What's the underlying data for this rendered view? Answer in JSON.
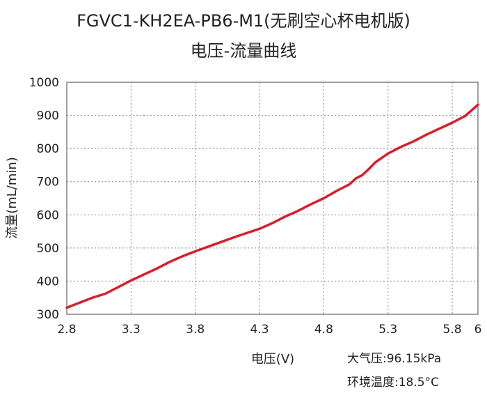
{
  "chart_data": {
    "type": "line",
    "title_line1": "FGVC1-KH2EA-PB6-M1(无刷空心杯电机版)",
    "title_line2": "电压-流量曲线",
    "xlabel": "电压(V)",
    "ylabel": "流量(mL/min)",
    "xlim": [
      2.8,
      6
    ],
    "ylim": [
      300,
      1000
    ],
    "xticks": [
      2.8,
      3.3,
      3.8,
      4.3,
      4.8,
      5.3,
      5.8,
      6
    ],
    "xtick_labels": [
      "2.8",
      "3.3",
      "3.8",
      "4.3",
      "4.8",
      "5.3",
      "5.8",
      "6"
    ],
    "yticks": [
      300,
      400,
      500,
      600,
      700,
      800,
      900,
      1000
    ],
    "ytick_labels": [
      "300",
      "400",
      "500",
      "600",
      "700",
      "800",
      "900",
      "1000"
    ],
    "grid": true,
    "line_color": "#d81e2a",
    "series": [
      {
        "x": [
          2.8,
          3.0,
          3.1,
          3.2,
          3.3,
          3.4,
          3.5,
          3.6,
          3.7,
          3.8,
          4.0,
          4.1,
          4.2,
          4.3,
          4.4,
          4.5,
          4.6,
          4.7,
          4.8,
          4.9,
          5.0,
          5.05,
          5.1,
          5.15,
          5.2,
          5.3,
          5.4,
          5.5,
          5.6,
          5.7,
          5.8,
          5.9,
          6.0
        ],
        "y": [
          320,
          350,
          362,
          382,
          402,
          420,
          438,
          458,
          475,
          490,
          518,
          532,
          545,
          558,
          575,
          595,
          612,
          632,
          650,
          672,
          692,
          710,
          720,
          738,
          758,
          785,
          805,
          822,
          842,
          860,
          878,
          898,
          932
        ]
      }
    ],
    "annotations": {
      "pressure": "大气压:96.15kPa",
      "temperature": "环境温度:18.5°C"
    }
  }
}
